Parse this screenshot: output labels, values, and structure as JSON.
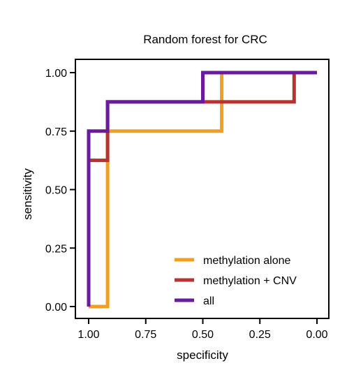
{
  "chart_data": {
    "type": "line",
    "title": "Random forest for CRC",
    "xlabel": "specificity",
    "ylabel": "sensitivity",
    "x_reversed": true,
    "xlim": [
      1.0,
      0.0
    ],
    "ylim": [
      0.0,
      1.0
    ],
    "x_ticks": [
      1.0,
      0.75,
      0.5,
      0.25,
      0.0
    ],
    "x_tick_labels": [
      "1.00",
      "0.75",
      "0.50",
      "0.25",
      "0.00"
    ],
    "y_ticks": [
      0.0,
      0.25,
      0.5,
      0.75,
      1.0
    ],
    "y_tick_labels": [
      "0.00",
      "0.25",
      "0.50",
      "0.75",
      "1.00"
    ],
    "grid": false,
    "legend_position": "bottom-right",
    "series": [
      {
        "name": "methylation alone",
        "color": "#F0A020",
        "points": [
          [
            1.0,
            0.0
          ],
          [
            0.917,
            0.0
          ],
          [
            0.917,
            0.75
          ],
          [
            0.417,
            0.75
          ],
          [
            0.417,
            1.0
          ],
          [
            0.0,
            1.0
          ]
        ]
      },
      {
        "name": "methylation + CNV",
        "color": "#B83232",
        "points": [
          [
            1.0,
            0.0
          ],
          [
            1.0,
            0.625
          ],
          [
            0.917,
            0.625
          ],
          [
            0.917,
            0.875
          ],
          [
            0.5,
            0.875
          ],
          [
            0.417,
            0.875
          ],
          [
            0.1,
            0.875
          ],
          [
            0.1,
            1.0
          ],
          [
            0.0,
            1.0
          ]
        ]
      },
      {
        "name": "all",
        "color": "#6A1B9A",
        "points": [
          [
            1.0,
            0.0
          ],
          [
            1.0,
            0.75
          ],
          [
            0.917,
            0.75
          ],
          [
            0.917,
            0.875
          ],
          [
            0.5,
            0.875
          ],
          [
            0.5,
            1.0
          ],
          [
            0.0,
            1.0
          ]
        ]
      }
    ]
  }
}
